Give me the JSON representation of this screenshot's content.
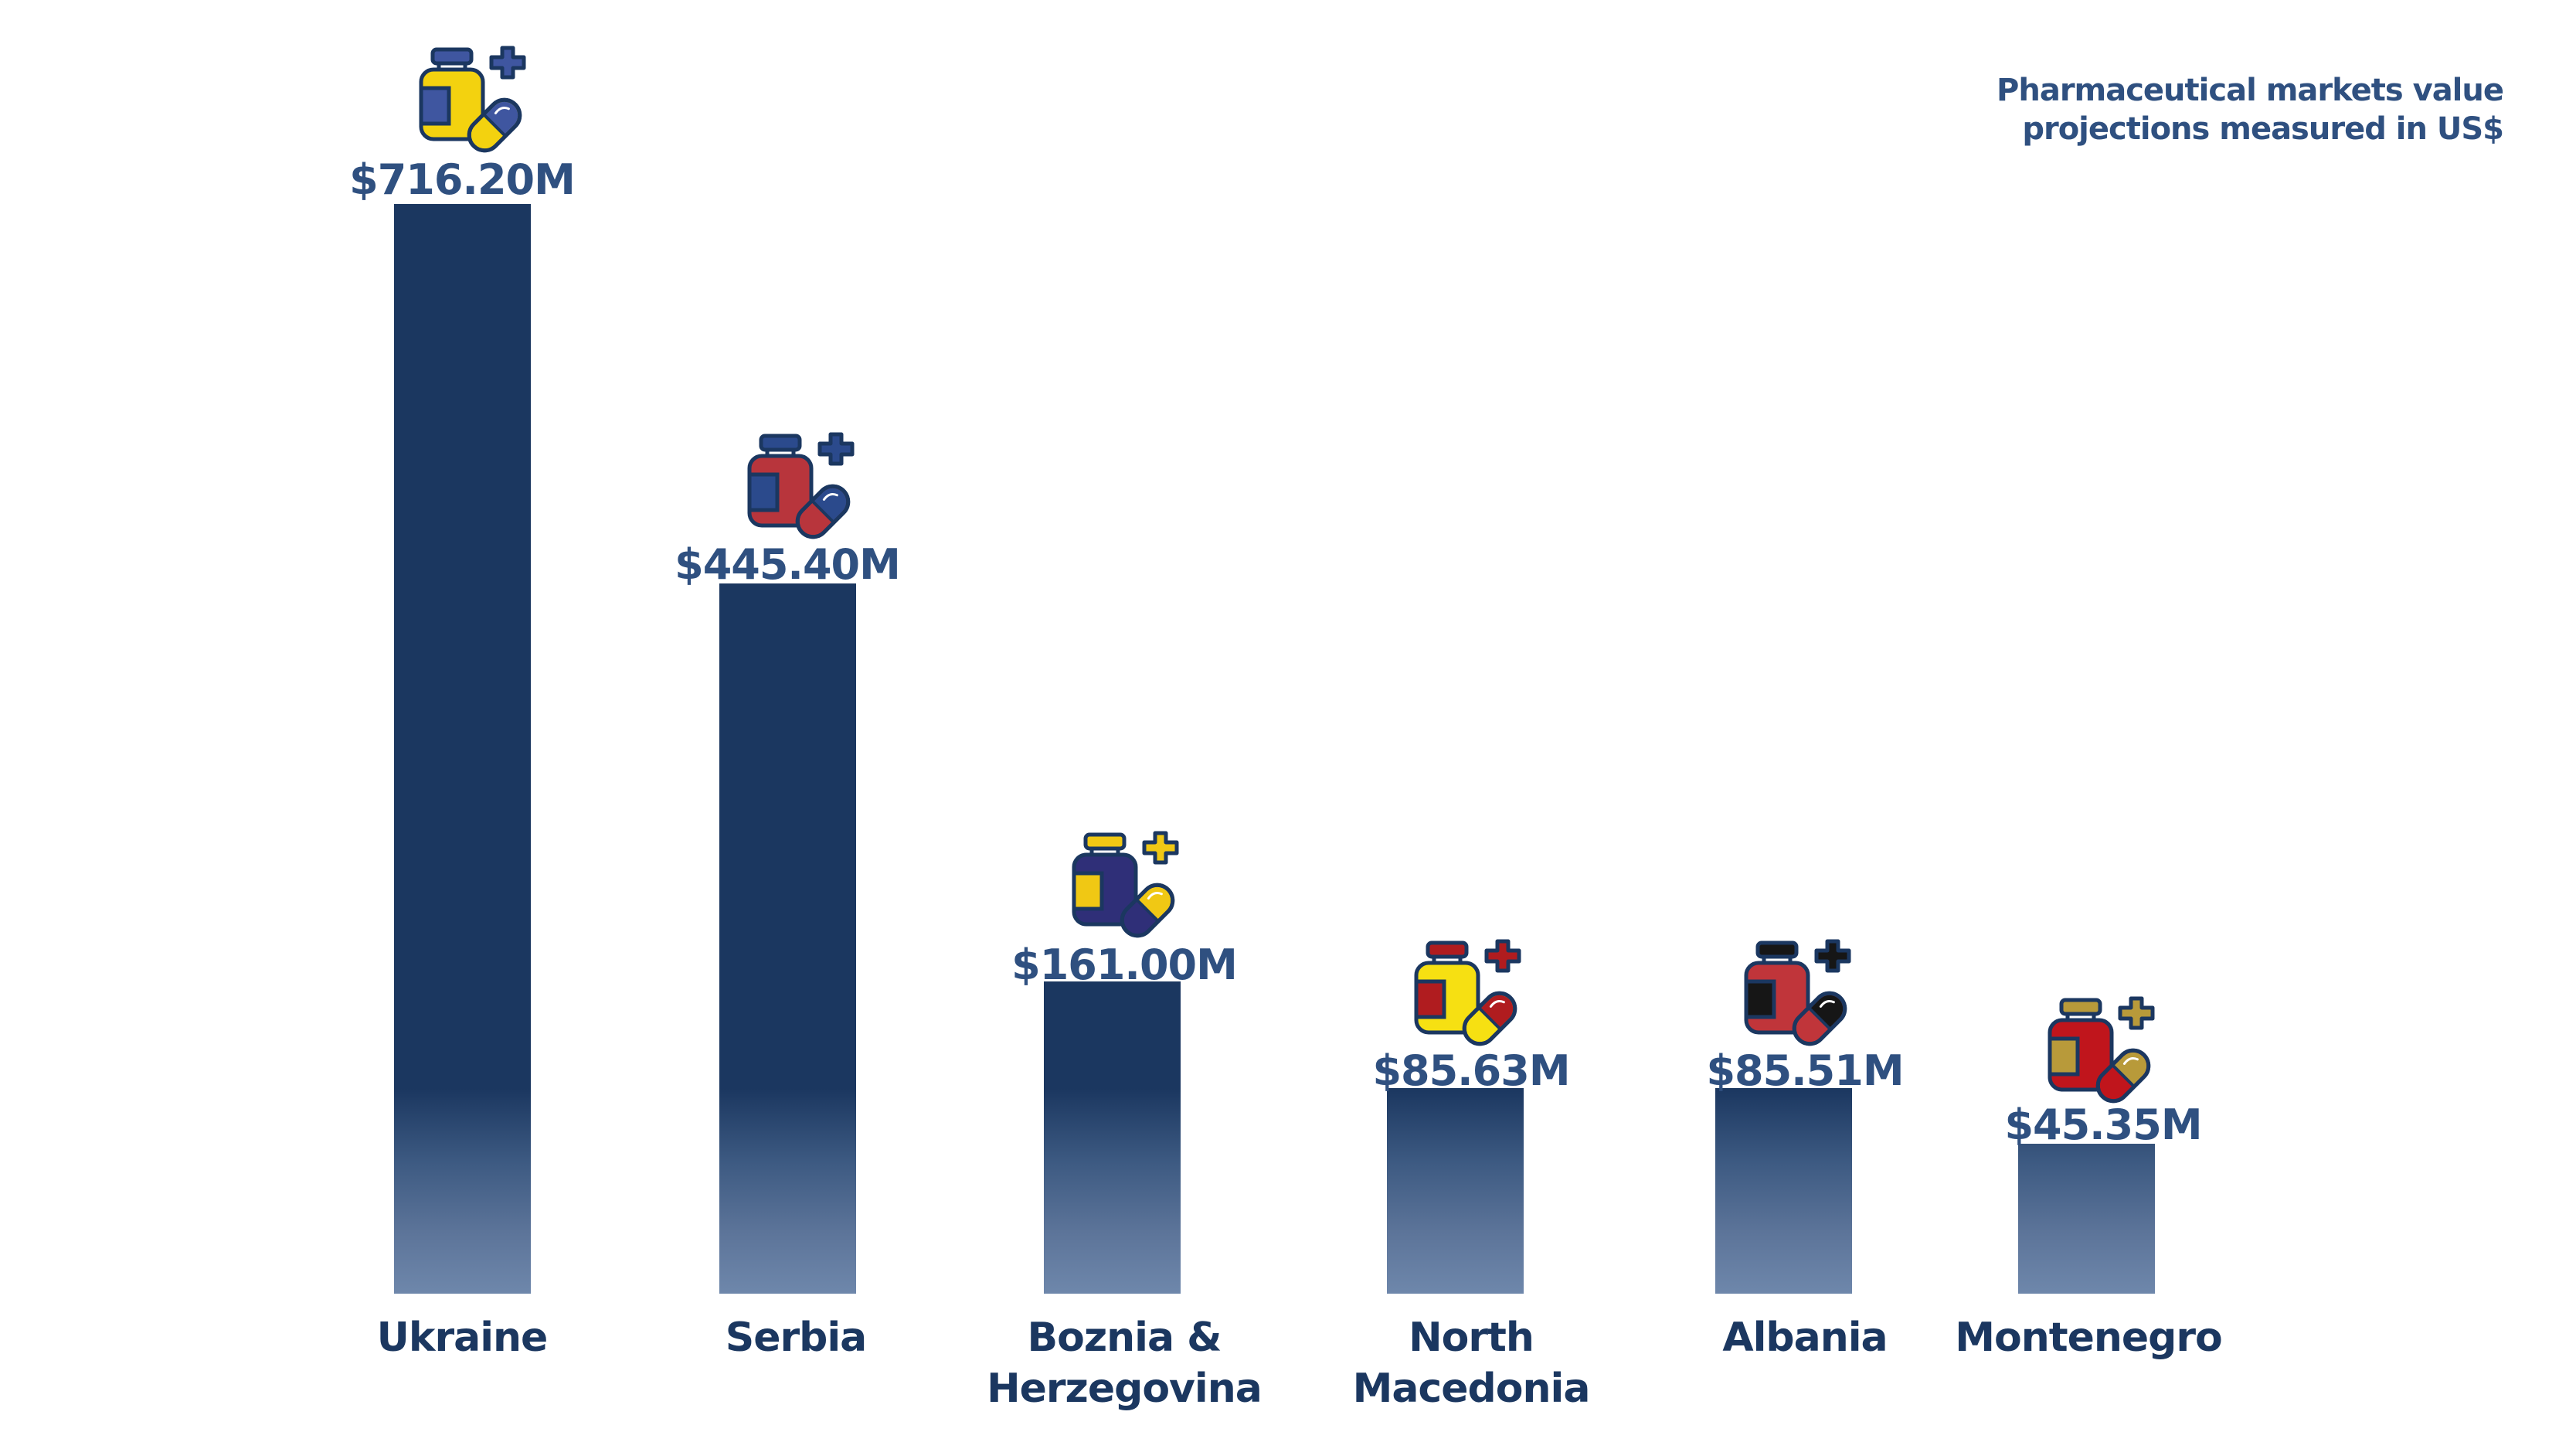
{
  "subtitle": {
    "line1": "Pharmaceutical markets value",
    "line2": "projections measured in US$"
  },
  "colors": {
    "bar_top": "#1b3760",
    "bar_bottom": "#6e87ab",
    "value_text": "#2f5080",
    "category_text": "#1b3760",
    "icon_outline": "#1b3760"
  },
  "bars": [
    {
      "country": "Ukraine",
      "country_line2": "",
      "value_label": "$716.20M",
      "icon": "medicine-bottle-pill-icon",
      "icon_colors": {
        "bottle": "#f3d20f",
        "accent": "#3f56a0",
        "cap": "#3f56a0",
        "plus": "#3f56a0",
        "pill_a": "#3f56a0",
        "pill_b": "#f3d20f"
      }
    },
    {
      "country": "Serbia",
      "country_line2": "",
      "value_label": "$445.40M",
      "icon": "medicine-bottle-pill-icon",
      "icon_colors": {
        "bottle": "#b8353c",
        "accent": "#2b4a8c",
        "cap": "#2b4a8c",
        "plus": "#2b4a8c",
        "pill_a": "#2b4a8c",
        "pill_b": "#b8353c"
      }
    },
    {
      "country": "Boznia &",
      "country_line2": "Herzegovina",
      "value_label": "$161.00M",
      "icon": "medicine-bottle-pill-icon",
      "icon_colors": {
        "bottle": "#2f2f78",
        "accent": "#f0c814",
        "cap": "#f0c814",
        "plus": "#f0c814",
        "pill_a": "#f0c814",
        "pill_b": "#2f2f78"
      }
    },
    {
      "country": "North",
      "country_line2": "Macedonia",
      "value_label": "$85.63M",
      "icon": "medicine-bottle-pill-icon",
      "icon_colors": {
        "bottle": "#f6e012",
        "accent": "#b01c1f",
        "cap": "#b01c1f",
        "plus": "#b01c1f",
        "pill_a": "#b01c1f",
        "pill_b": "#f6e012"
      }
    },
    {
      "country": "Albania",
      "country_line2": "",
      "value_label": "$85.51M",
      "icon": "medicine-bottle-pill-icon",
      "icon_colors": {
        "bottle": "#c0353a",
        "accent": "#161616",
        "cap": "#161616",
        "plus": "#161616",
        "pill_a": "#161616",
        "pill_b": "#c0353a"
      }
    },
    {
      "country": "Montenegro",
      "country_line2": "",
      "value_label": "$45.35M",
      "icon": "medicine-bottle-pill-icon",
      "icon_colors": {
        "bottle": "#c0151c",
        "accent": "#b89a3a",
        "cap": "#b89a3a",
        "plus": "#b89a3a",
        "pill_a": "#b89a3a",
        "pill_b": "#c0151c"
      }
    }
  ],
  "chart_data": {
    "type": "bar",
    "title": "Pharmaceutical markets value projections measured in US$",
    "xlabel": "",
    "ylabel": "",
    "categories": [
      "Ukraine",
      "Serbia",
      "Boznia & Herzegovina",
      "North Macedonia",
      "Albania",
      "Montenegro"
    ],
    "values": [
      716.2,
      445.4,
      161.0,
      85.63,
      85.51,
      45.35
    ],
    "value_labels": [
      "$716.20M",
      "$445.40M",
      "$161.00M",
      "$85.63M",
      "$85.51M",
      "$45.35M"
    ],
    "unit": "US$ millions",
    "grid": false,
    "legend": "none",
    "axes_visible": false
  }
}
